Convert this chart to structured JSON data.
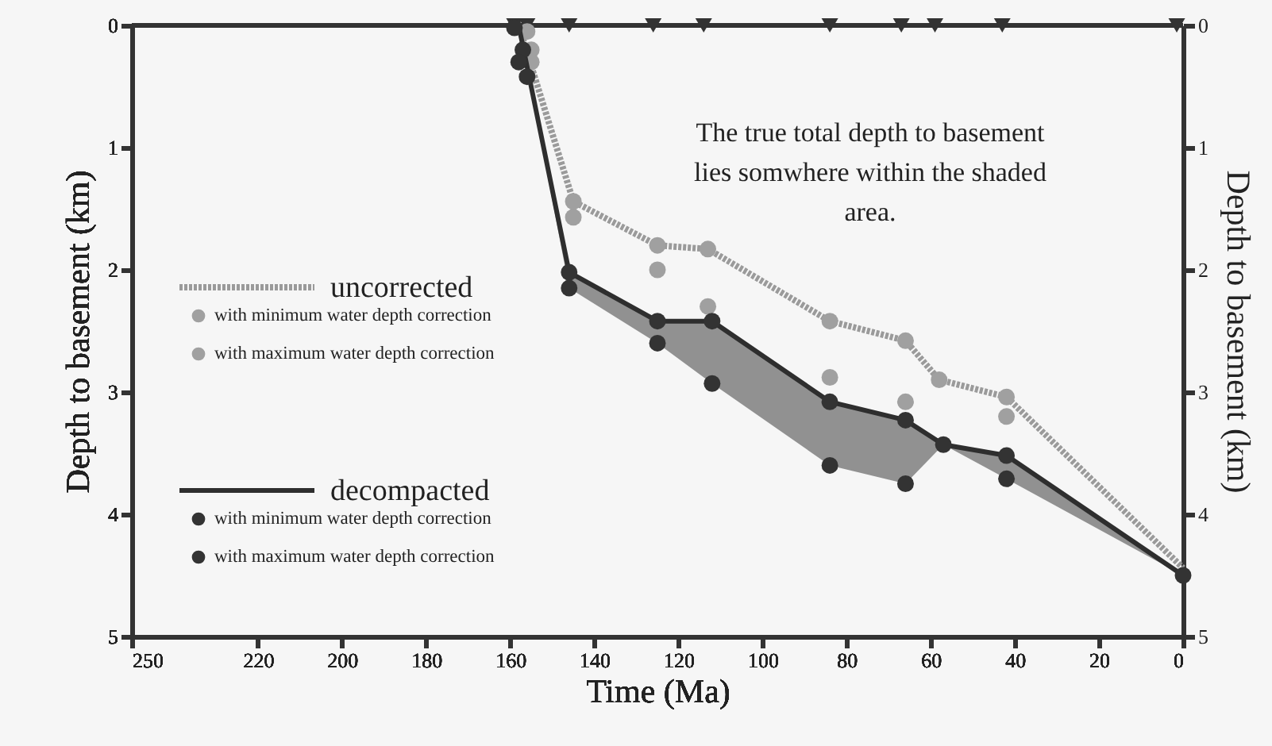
{
  "chart_data": {
    "type": "line",
    "xlabel": "Time (Ma)",
    "ylabel": "Depth to basement (km)",
    "y2label": "Depth to basement (km)",
    "xlim": [
      250,
      0
    ],
    "xticks": [
      250,
      220,
      200,
      180,
      160,
      140,
      120,
      100,
      80,
      60,
      40,
      20,
      0
    ],
    "ylim": [
      5,
      0
    ],
    "yticks": [
      0,
      1,
      2,
      3,
      4,
      5
    ],
    "y2lim": [
      5,
      0
    ],
    "y2ticks": [
      0,
      1,
      2,
      3,
      4,
      5
    ],
    "tick_labels": "xy",
    "grid": false,
    "legend": "left",
    "annotations": [
      "The true total depth to basement\nlies somwhere within the shaded\narea."
    ],
    "series": [
      {
        "type": "scatter",
        "color": "#333333",
        "marker": "triangle",
        "x": [
          159,
          156,
          146,
          126,
          114,
          84,
          67,
          59,
          43,
          1.5
        ],
        "values": [
          0,
          0,
          0,
          0,
          0,
          0,
          0,
          0,
          0,
          0
        ]
      },
      {
        "name": "uncorrected",
        "type": "line",
        "color": "#9a9a9a",
        "line_style": "dotted",
        "marker": "none",
        "x": [
          158,
          145,
          125,
          113,
          84,
          66,
          58,
          42,
          0
        ],
        "values": [
          0,
          1.44,
          1.8,
          1.83,
          2.42,
          2.58,
          2.9,
          3.04,
          4.44
        ]
      },
      {
        "name": "with minimum water depth correction",
        "type": "scatter",
        "color": "#a0a0a0",
        "marker": "circle",
        "x": [
          156,
          155,
          145,
          125,
          113,
          84,
          66,
          58,
          42
        ],
        "values": [
          0.05,
          0.2,
          1.44,
          1.8,
          1.83,
          2.42,
          2.58,
          2.9,
          3.04
        ]
      },
      {
        "name": "with maximum water depth correction",
        "type": "scatter",
        "color": "#a0a0a0",
        "marker": "circle",
        "x": [
          155,
          154,
          145,
          125,
          113,
          84,
          66,
          42
        ],
        "values": [
          0.3,
          null,
          1.57,
          2.0,
          2.3,
          2.88,
          3.08,
          3.2
        ]
      },
      {
        "name": "decompacted",
        "type": "line",
        "color": "#2e2e2e",
        "line_style": "solid",
        "marker": "none",
        "x": [
          158,
          146,
          125,
          112,
          84,
          66,
          57,
          42,
          0
        ],
        "values": [
          0,
          2.02,
          2.42,
          2.42,
          3.08,
          3.23,
          3.43,
          3.52,
          4.5
        ],
        "lower": [
          0,
          2.15,
          2.6,
          2.93,
          3.6,
          3.75,
          3.43,
          3.71,
          4.5
        ],
        "upper": [
          0,
          2.02,
          2.42,
          2.42,
          3.08,
          3.23,
          3.43,
          3.52,
          4.5
        ]
      },
      {
        "name": "with minimum water depth correction",
        "type": "scatter",
        "color": "#333333",
        "marker": "circle",
        "x": [
          159,
          157,
          146,
          125,
          112,
          84,
          66,
          57,
          42,
          0
        ],
        "values": [
          0.02,
          0.2,
          2.02,
          2.42,
          2.42,
          3.08,
          3.23,
          3.43,
          3.52,
          4.5
        ]
      },
      {
        "name": "with maximum water depth correction",
        "type": "scatter",
        "color": "#333333",
        "marker": "circle",
        "x": [
          158,
          156,
          146,
          125,
          112,
          84,
          66,
          42
        ],
        "values": [
          0.3,
          0.42,
          2.15,
          2.6,
          2.93,
          3.6,
          3.75,
          3.71
        ]
      }
    ]
  }
}
